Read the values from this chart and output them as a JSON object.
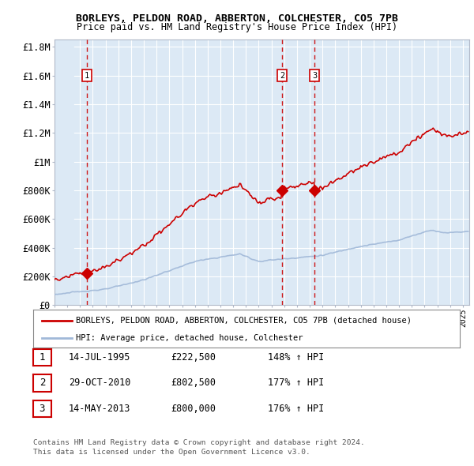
{
  "title1": "BORLEYS, PELDON ROAD, ABBERTON, COLCHESTER, CO5 7PB",
  "title2": "Price paid vs. HM Land Registry's House Price Index (HPI)",
  "ylim": [
    0,
    1850000
  ],
  "yticks": [
    0,
    200000,
    400000,
    600000,
    800000,
    1000000,
    1200000,
    1400000,
    1600000,
    1800000
  ],
  "ytick_labels": [
    "£0",
    "£200K",
    "£400K",
    "£600K",
    "£800K",
    "£1M",
    "£1.2M",
    "£1.4M",
    "£1.6M",
    "£1.8M"
  ],
  "xlim_start": 1993.0,
  "xlim_end": 2025.5,
  "sale_dates": [
    1995.537,
    2010.831,
    2013.368
  ],
  "sale_prices": [
    222500,
    802500,
    800000
  ],
  "sale_labels": [
    "1",
    "2",
    "3"
  ],
  "hpi_color": "#a0b8d8",
  "price_color": "#cc0000",
  "background_color": "#dce9f5",
  "grid_color": "#ffffff",
  "legend_label_price": "BORLEYS, PELDON ROAD, ABBERTON, COLCHESTER, CO5 7PB (detached house)",
  "legend_label_hpi": "HPI: Average price, detached house, Colchester",
  "footer1": "Contains HM Land Registry data © Crown copyright and database right 2024.",
  "footer2": "This data is licensed under the Open Government Licence v3.0.",
  "table_rows": [
    [
      "1",
      "14-JUL-1995",
      "£222,500",
      "148% ↑ HPI"
    ],
    [
      "2",
      "29-OCT-2010",
      "£802,500",
      "177% ↑ HPI"
    ],
    [
      "3",
      "14-MAY-2013",
      "£800,000",
      "176% ↑ HPI"
    ]
  ],
  "vline_color": "#cc0000"
}
